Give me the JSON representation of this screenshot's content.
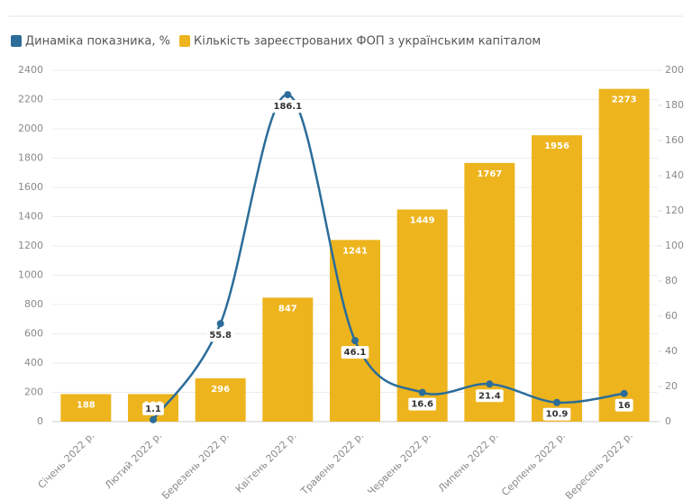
{
  "chart_data": {
    "type": "combo",
    "categories": [
      "Січень 2022 р.",
      "Лютий 2022 р.",
      "Березень 2022 р.",
      "Квітень 2022 р.",
      "Травень 2022 р.",
      "Червень 2022 р.",
      "Липень 2022 р.",
      "Серпень 2022 р.",
      "Вересень 2022 р."
    ],
    "series": [
      {
        "name": "Динаміка показника, %",
        "type": "line",
        "axis": "y2",
        "color": "#2b6c99",
        "values": [
          null,
          1.1,
          55.8,
          186.1,
          46.1,
          16.6,
          21.4,
          10.9,
          16
        ]
      },
      {
        "name": "Кількість зареєстрованих ФОП з українським капіталом",
        "type": "bar",
        "color": "#edb41e",
        "values": [
          188,
          188,
          296,
          847,
          1241,
          1449,
          1767,
          1956,
          2273
        ]
      }
    ],
    "ylim": [
      0,
      2400
    ],
    "yticks": [
      0,
      200,
      400,
      600,
      800,
      1000,
      1200,
      1400,
      1600,
      1800,
      2000,
      2200,
      2400
    ],
    "y2lim": [
      0,
      200
    ],
    "y2ticks": [
      0,
      20,
      40,
      60,
      80,
      100,
      120,
      140,
      160,
      180,
      200
    ],
    "legend": "top-left"
  }
}
